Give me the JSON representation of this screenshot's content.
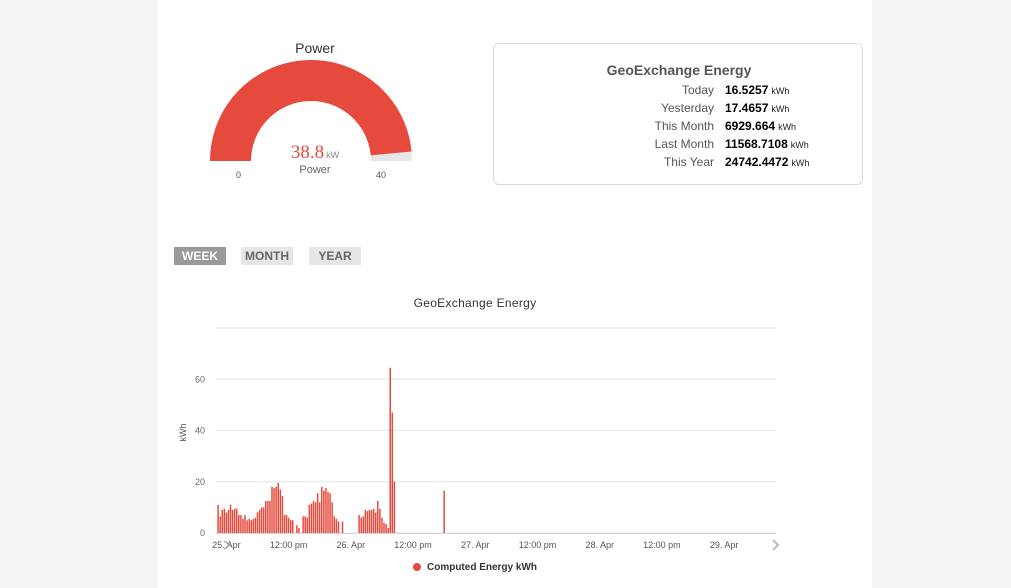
{
  "gauge": {
    "title": "Power",
    "value": "38.8",
    "unit": "kW",
    "label": "Power",
    "min": "0",
    "max": "40",
    "fill_color": "#e64a3c",
    "track_color": "#e6e6e6"
  },
  "energy_card": {
    "title": "GeoExchange Energy",
    "rows": [
      {
        "label": "Today",
        "value": "16.5257",
        "unit": "kWh"
      },
      {
        "label": "Yesterday",
        "value": "17.4657",
        "unit": "kWh"
      },
      {
        "label": "This Month",
        "value": "6929.664",
        "unit": "kWh"
      },
      {
        "label": "Last Month",
        "value": "11568.7108",
        "unit": "kWh"
      },
      {
        "label": "This Year",
        "value": "24742.4472",
        "unit": "kWh"
      }
    ]
  },
  "tabs": [
    {
      "label": "WEEK",
      "active": true
    },
    {
      "label": "MONTH",
      "active": false
    },
    {
      "label": "YEAR",
      "active": false
    }
  ],
  "chart_data": {
    "type": "bar",
    "title": "GeoExchange Energy",
    "ylabel": "kWh",
    "xlabel": "",
    "ylim": [
      0,
      80
    ],
    "yticks": [
      0,
      20,
      40,
      60
    ],
    "x_tick_labels": [
      "25. Apr",
      "12:00 pm",
      "26. Apr",
      "12:00 pm",
      "27. Apr",
      "12:00 pm",
      "28. Apr",
      "12:00 pm",
      "29. Apr"
    ],
    "x_tick_hours": [
      0,
      12,
      24,
      36,
      48,
      60,
      72,
      84,
      96
    ],
    "hour_range": [
      -2,
      106
    ],
    "grid": true,
    "legend_position": "bottom-center",
    "series": [
      {
        "name": "Computed Energy kWh",
        "color": "#e64a3c",
        "bar_hour_step": 0.4,
        "start_hour": -1.6,
        "values": [
          11,
          6.5,
          9,
          9.5,
          8,
          9,
          11,
          9,
          9.5,
          9.5,
          7,
          7,
          5.5,
          7,
          5,
          5.5,
          5,
          5.5,
          6,
          8,
          9,
          10,
          10,
          12.5,
          12.5,
          12.5,
          18,
          17.5,
          18,
          19.5,
          17,
          14.5,
          7,
          7,
          6,
          5,
          5,
          0,
          3,
          2,
          0,
          6.5,
          6.5,
          6,
          11,
          11.5,
          12.5,
          12,
          15.5,
          12,
          18,
          16.5,
          17.5,
          16,
          15.5,
          12,
          6.5,
          5.5,
          4.5,
          0,
          4.5,
          0,
          0,
          0,
          0,
          0,
          0,
          0,
          7,
          6,
          6.5,
          9,
          8.5,
          9,
          9,
          9.5,
          8,
          12.5,
          9.5,
          6,
          4,
          3.5,
          2,
          64.5,
          47,
          20,
          0,
          0,
          0,
          0,
          0,
          0,
          0,
          0,
          0,
          0,
          0,
          0,
          0,
          0,
          0,
          0,
          0,
          0,
          0,
          0,
          0,
          0,
          0,
          16.5
        ]
      }
    ]
  }
}
